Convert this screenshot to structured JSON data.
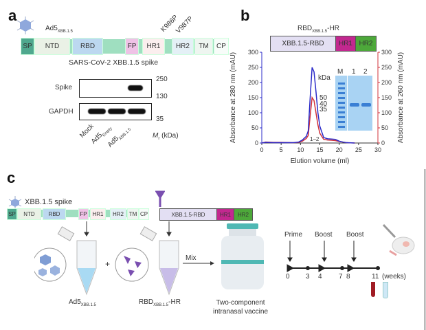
{
  "panel_a": {
    "label": "a",
    "vector": "Ad5",
    "vector_sub": "XBB.1.5",
    "domains": [
      "SP",
      "NTD",
      "RBD",
      "FP",
      "HR1",
      "HR2",
      "TM",
      "CP"
    ],
    "mutations": [
      "K986P",
      "V987P"
    ],
    "caption": "SARS-CoV-2 XBB.1.5 spike",
    "blot_rows": [
      "Spike",
      "GAPDH"
    ],
    "markers": [
      "250",
      "130",
      "35"
    ],
    "lanes": [
      {
        "main": "Mock",
        "sub": ""
      },
      {
        "main": "Ad5",
        "sub": "Empty"
      },
      {
        "main": "Ad5",
        "sub": "XBB.1.5"
      }
    ],
    "mr_label": "M",
    "mr_sub": "r",
    "mr_unit": " (kDa)"
  },
  "panel_b": {
    "label": "b",
    "construct_title": "RBD",
    "construct_sub": "XBB.1.5",
    "construct_suffix": "-HR",
    "construct": [
      "XBB.1.5-RBD",
      "HR1",
      "HR2"
    ],
    "gel": {
      "lanes": [
        "M",
        "1",
        "2"
      ],
      "unit": "kDa",
      "markers": [
        "50",
        "40",
        "35"
      ]
    },
    "fraction_label": "1–2"
  },
  "panel_c": {
    "label": "c",
    "spike_title": "XBB.1.5 spike",
    "domains": [
      "SP",
      "NTD",
      "RBD",
      "FP",
      "HR1",
      "HR2",
      "TM",
      "CP"
    ],
    "construct": [
      "XBB.1.5-RBD",
      "HR1",
      "HR2"
    ],
    "plus": "+",
    "mix": "Mix",
    "tube1": "Ad5",
    "tube1_sub": "XBB.1.5",
    "tube2": "RBD",
    "tube2_sub": "XBB.1.5",
    "tube2_suffix": "-HR",
    "vaccine": [
      "Two-component",
      "intranasal vaccine"
    ],
    "timeline": {
      "events": [
        "Prime",
        "Boost",
        "Boost"
      ],
      "ticks": [
        "0",
        "3",
        "4",
        "7",
        "8",
        "11"
      ],
      "unit": "(weeks)"
    }
  },
  "colors": {
    "blue": "#2b2bc8",
    "red": "#d0303a",
    "hr1": "#c2288f",
    "hr2": "#4da83a",
    "rbd_construct": "#e3dff3"
  },
  "chart_data": {
    "type": "line",
    "title": "",
    "xlabel": "Elution volume (ml)",
    "ylabel": "Absorbance at 280 nm (mAU)",
    "ylabel_right": "Absorbance at 260 nm (mAU)",
    "xlim": [
      0,
      30
    ],
    "ylim": [
      0,
      300
    ],
    "xticks": [
      "0",
      "5",
      "10",
      "15",
      "20",
      "25",
      "30"
    ],
    "yticks": [
      "0",
      "50",
      "100",
      "150",
      "200",
      "250",
      "300"
    ],
    "series": [
      {
        "name": "A280",
        "color": "#2b2bc8",
        "x": [
          0,
          1,
          3,
          5,
          8,
          9.5,
          10.5,
          11.5,
          12,
          12.5,
          13,
          13.5,
          14,
          14.5,
          15,
          16,
          17,
          18,
          19,
          20,
          21,
          22,
          24
        ],
        "y": [
          0,
          2,
          1,
          1,
          1,
          3,
          10,
          22,
          40,
          150,
          250,
          235,
          170,
          100,
          55,
          18,
          14,
          13,
          12,
          6,
          3,
          1,
          0
        ]
      },
      {
        "name": "A260",
        "color": "#d0303a",
        "x": [
          0,
          1,
          3,
          5,
          8,
          9.5,
          10.5,
          11.5,
          12,
          12.5,
          13,
          13.5,
          14,
          14.5,
          15,
          16,
          17,
          18,
          19,
          20,
          21,
          22,
          24
        ],
        "y": [
          0,
          3,
          2,
          2,
          1,
          2,
          6,
          15,
          25,
          90,
          150,
          140,
          100,
          60,
          32,
          12,
          10,
          9,
          8,
          5,
          3,
          1,
          0
        ]
      }
    ]
  }
}
